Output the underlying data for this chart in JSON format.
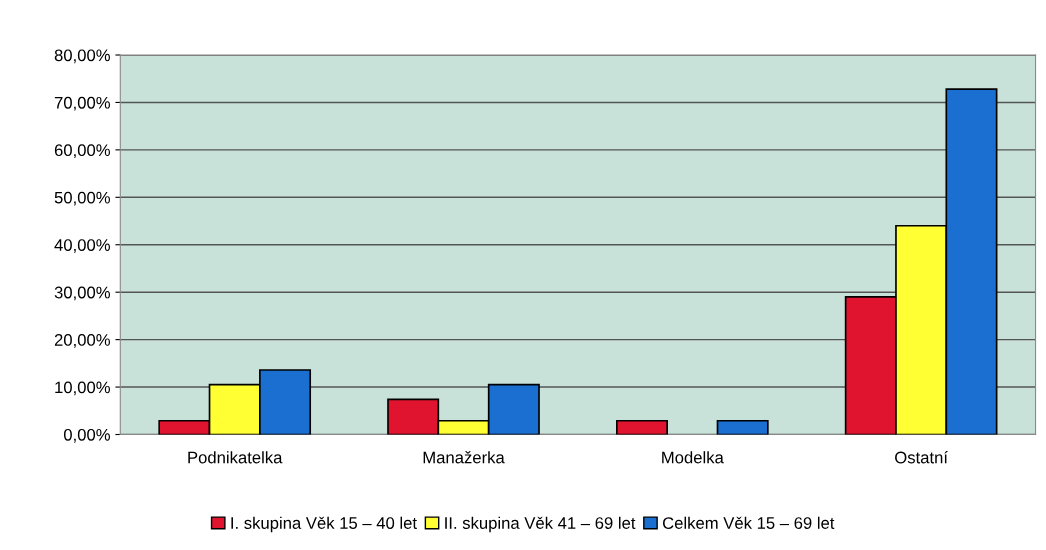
{
  "chart_data": {
    "type": "bar",
    "categories": [
      "Podnikatelka",
      "Manažerka",
      "Modelka",
      "Ostatní"
    ],
    "series": [
      {
        "name": "I. skupina Věk 15 – 40 let",
        "color": "#e0142e",
        "values": [
          2.9,
          7.4,
          2.9,
          29.0
        ]
      },
      {
        "name": "II. skupina Věk 41 – 69 let",
        "color": "#ffff33",
        "values": [
          10.5,
          2.9,
          null,
          44.0
        ]
      },
      {
        "name": "Celkem Věk 15 – 69 let",
        "color": "#1a6fd0",
        "values": [
          13.6,
          10.5,
          2.9,
          72.8
        ]
      }
    ],
    "ylim": [
      0,
      80
    ],
    "yticks": [
      {
        "value": 0,
        "label": "0,00%"
      },
      {
        "value": 10,
        "label": "10,00%"
      },
      {
        "value": 20,
        "label": "20,00%"
      },
      {
        "value": 30,
        "label": "30,00%"
      },
      {
        "value": 40,
        "label": "40,00%"
      },
      {
        "value": 50,
        "label": "50,00%"
      },
      {
        "value": 60,
        "label": "60,00%"
      },
      {
        "value": 70,
        "label": "70,00%"
      },
      {
        "value": 80,
        "label": "80,00%"
      }
    ],
    "grid": "y",
    "legend": "bottom"
  }
}
